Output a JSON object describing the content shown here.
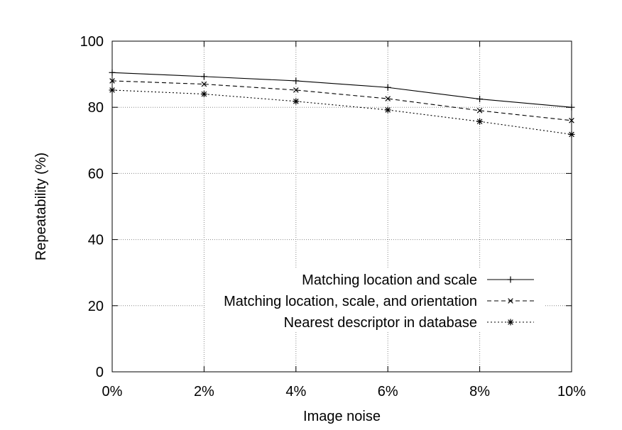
{
  "chart_data": {
    "type": "line",
    "title": "",
    "xlabel": "Image noise",
    "ylabel": "Repeatability (%)",
    "categories": [
      "0%",
      "2%",
      "4%",
      "6%",
      "8%",
      "10%"
    ],
    "x": [
      0,
      2,
      4,
      6,
      8,
      10
    ],
    "ylim": [
      0,
      100
    ],
    "yticks": [
      "0",
      "20",
      "40",
      "60",
      "80",
      "100"
    ],
    "ytick_values": [
      0,
      20,
      40,
      60,
      80,
      100
    ],
    "grid": true,
    "legend_position": "bottom-right",
    "series": [
      {
        "name": "Matching location and scale",
        "values": [
          90.5,
          89.3,
          88.0,
          86.0,
          82.5,
          80.0
        ],
        "dash": "solid",
        "marker": "plus"
      },
      {
        "name": "Matching location, scale, and orientation",
        "values": [
          88.0,
          87.0,
          85.2,
          82.6,
          79.0,
          76.0
        ],
        "dash": "dashed",
        "marker": "cross"
      },
      {
        "name": "Nearest descriptor in database",
        "values": [
          85.2,
          84.0,
          81.8,
          79.2,
          75.7,
          71.8
        ],
        "dash": "dotted",
        "marker": "star"
      }
    ],
    "colors": {
      "line": "#000000",
      "grid": "#888888",
      "background": "#ffffff"
    }
  }
}
